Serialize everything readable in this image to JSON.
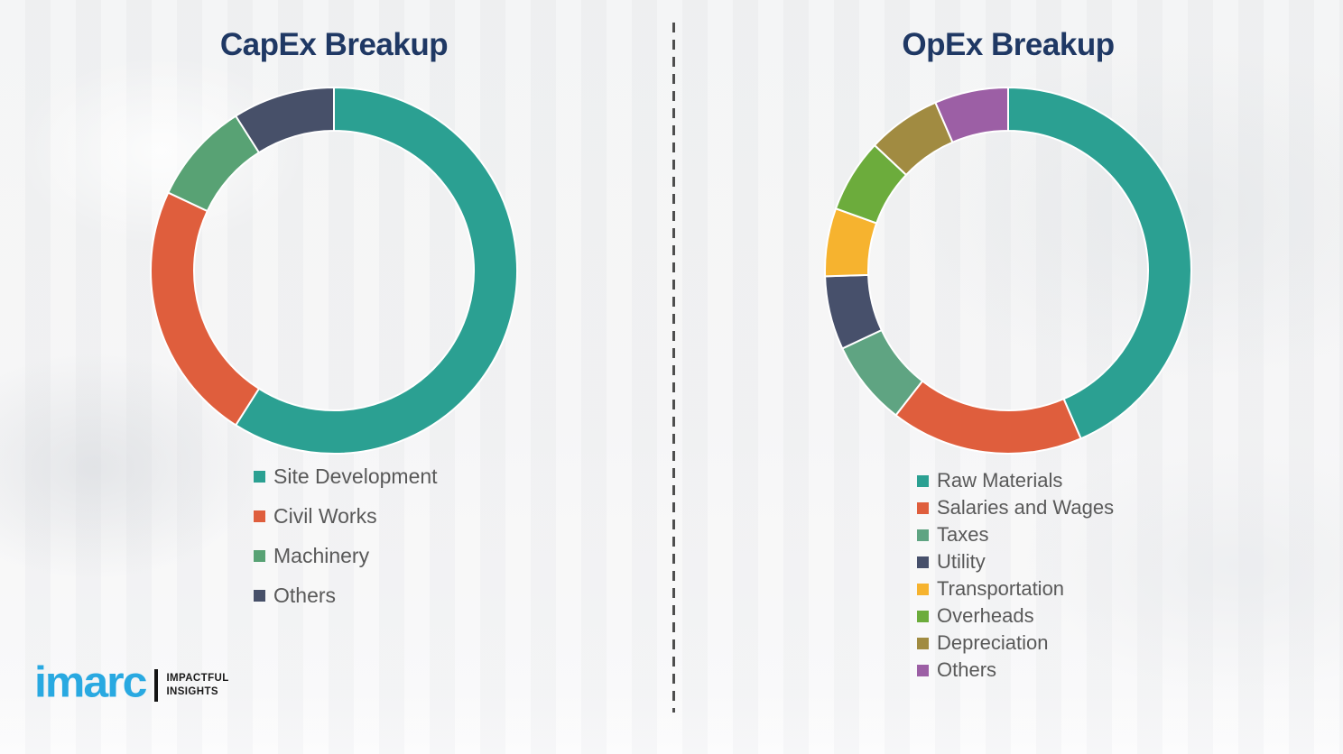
{
  "page": {
    "background_color": "#f2f2f3",
    "divider_style": "vertical-dashed"
  },
  "chart_data": [
    {
      "type": "pie",
      "subtype": "donut",
      "title": "CapEx Breakup",
      "categories": [
        "Site Development",
        "Civil Works",
        "Machinery",
        "Others"
      ],
      "values": [
        59,
        23,
        9,
        9
      ],
      "colors": [
        "#2ba092",
        "#df5e3d",
        "#58a274",
        "#475069"
      ],
      "units": "percent (estimated from arc angles)",
      "start_angle_deg": 0,
      "direction": "clockwise",
      "legend_position": "below-chart-left",
      "segment_gap_color": "#ffffff"
    },
    {
      "type": "pie",
      "subtype": "donut",
      "title": "OpEx Breakup",
      "categories": [
        "Raw Materials",
        "Salaries and Wages",
        "Taxes",
        "Utility",
        "Transportation",
        "Overheads",
        "Depreciation",
        "Others"
      ],
      "values": [
        43.5,
        17,
        7.5,
        6.5,
        6,
        6.5,
        6.5,
        6.5
      ],
      "colors": [
        "#2ba092",
        "#df5e3d",
        "#5fa482",
        "#47506b",
        "#f6b32f",
        "#6cac3c",
        "#a18b41",
        "#9c5fa5"
      ],
      "units": "percent (estimated from arc angles)",
      "start_angle_deg": 0,
      "direction": "clockwise",
      "legend_position": "below-chart-left",
      "segment_gap_color": "#ffffff"
    }
  ],
  "titles_color": "#1f3864",
  "legend_text_color": "#595959",
  "logo": {
    "wordmark": "imarc",
    "brand_color": "#29a9e1",
    "tagline_line1": "IMPACTFUL",
    "tagline_line2": "INSIGHTS"
  }
}
